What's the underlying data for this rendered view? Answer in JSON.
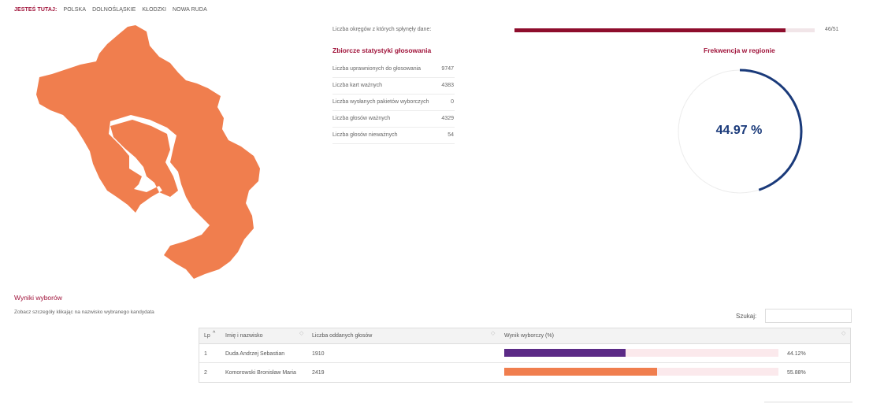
{
  "breadcrumb": {
    "here": "JESTEŚ TUTAJ:",
    "items": [
      "POLSKA",
      "DOLNOŚLĄSKIE",
      "KŁODZKI",
      "NOWA RUDA"
    ]
  },
  "map": {
    "fill_color": "#f07e4e"
  },
  "progress": {
    "label": "Liczba okręgów z których spłynęły dane:",
    "done": 46,
    "total": 51,
    "count_text": "46/51",
    "color": "#8e0d2c"
  },
  "stats": {
    "title": "Zbiorcze statystyki głosowania",
    "rows": [
      {
        "label": "Liczba uprawnionych do głosowania",
        "value": "9747"
      },
      {
        "label": "Liczba kart ważnych",
        "value": "4383"
      },
      {
        "label": "Liczba wysłanych pakietów wyborczych",
        "value": "0"
      },
      {
        "label": "Liczba głosów ważnych",
        "value": "4329"
      },
      {
        "label": "Liczba głosów nieważnych",
        "value": "54"
      }
    ]
  },
  "turnout": {
    "title": "Frekwencja w regionie",
    "value_text": "44.97 %",
    "fraction": 0.4497,
    "color": "#1a3a7a"
  },
  "results": {
    "title": "Wyniki wyborów",
    "hint": "Zobacz szczegóły klikając na nazwisko wybranego kandydata",
    "search_label": "Szukaj:",
    "columns": [
      "Lp",
      "Imię i nazwisko",
      "Liczba oddanych głosów",
      "Wynik wyborczy (%)"
    ],
    "rows": [
      {
        "lp": "1",
        "name": "Duda Andrzej Sebastian",
        "votes": "1910",
        "percent": 44.12,
        "percent_text": "44.12%",
        "color": "#5b2a86"
      },
      {
        "lp": "2",
        "name": "Komorowski Bronisław Maria",
        "votes": "2419",
        "percent": 55.88,
        "percent_text": "55.88%",
        "color": "#f07e4e"
      }
    ]
  }
}
